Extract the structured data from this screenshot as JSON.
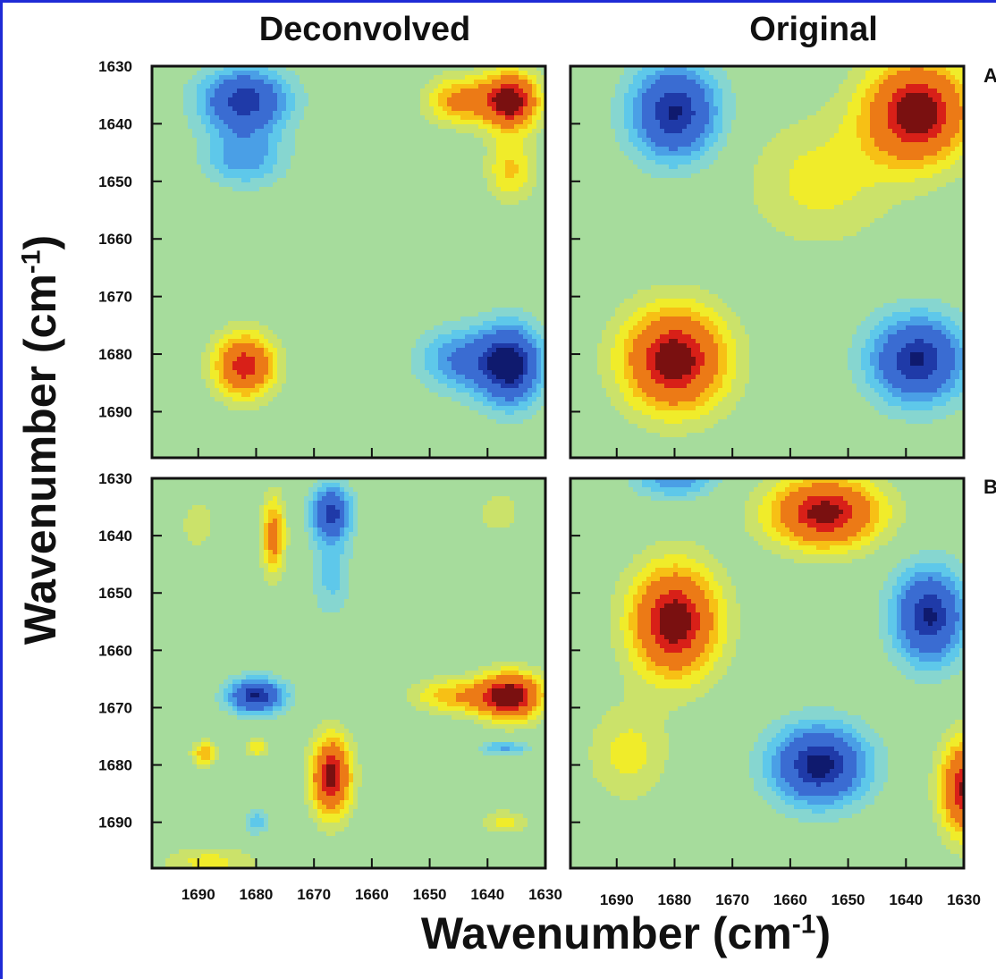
{
  "chart_data": {
    "type": "heatmap",
    "x_axis_label": "Wavenumber (cm",
    "y_axis_label": "Wavenumber (cm",
    "axis_label_superscript": "-1",
    "columns": [
      "Deconvolved",
      "Original"
    ],
    "rows": [
      "A",
      "B"
    ],
    "xlim": [
      1698,
      1630
    ],
    "ylim": [
      1630,
      1698
    ],
    "x_ticks": [
      1690,
      1680,
      1670,
      1660,
      1650,
      1640,
      1630
    ],
    "y_ticks": [
      1630,
      1640,
      1650,
      1660,
      1670,
      1680,
      1690
    ],
    "contour_levels": 16,
    "colormap": [
      "#0f1a6e",
      "#1f3aa8",
      "#3a6cd2",
      "#4a9fe6",
      "#5ec8ea",
      "#86d6d0",
      "#a6dc9c",
      "#cbe26a",
      "#f0ec2a",
      "#f7c015",
      "#ec7a16",
      "#d82018",
      "#7a1010"
    ],
    "panels": [
      {
        "row": "A",
        "column": "Deconvolved",
        "peaks": [
          {
            "x": 1682,
            "y": 1636,
            "value": -0.85,
            "sx": 5.5,
            "sy": 4.0
          },
          {
            "x": 1682,
            "y": 1646,
            "value": -0.45,
            "sx": 5.0,
            "sy": 3.5
          },
          {
            "x": 1636,
            "y": 1636,
            "value": 1.0,
            "sx": 3.5,
            "sy": 3.5
          },
          {
            "x": 1645,
            "y": 1636,
            "value": 0.55,
            "sx": 4.0,
            "sy": 3.0
          },
          {
            "x": 1636,
            "y": 1648,
            "value": 0.4,
            "sx": 3.0,
            "sy": 4.0
          },
          {
            "x": 1682,
            "y": 1682,
            "value": 0.85,
            "sx": 3.8,
            "sy": 4.0
          },
          {
            "x": 1636,
            "y": 1682,
            "value": -0.95,
            "sx": 4.0,
            "sy": 5.0
          },
          {
            "x": 1645,
            "y": 1681,
            "value": -0.5,
            "sx": 5.0,
            "sy": 4.0
          }
        ]
      },
      {
        "row": "A",
        "column": "Original",
        "peaks": [
          {
            "x": 1680,
            "y": 1638,
            "value": -0.9,
            "sx": 5.5,
            "sy": 6.0
          },
          {
            "x": 1638,
            "y": 1638,
            "value": 1.0,
            "sx": 6.5,
            "sy": 6.5
          },
          {
            "x": 1680,
            "y": 1681,
            "value": 1.0,
            "sx": 6.5,
            "sy": 6.5
          },
          {
            "x": 1638,
            "y": 1681,
            "value": -0.9,
            "sx": 6.0,
            "sy": 5.5
          },
          {
            "x": 1655,
            "y": 1650,
            "value": 0.3,
            "sx": 9.0,
            "sy": 8.0
          }
        ]
      },
      {
        "row": "B",
        "column": "Deconvolved",
        "peaks": [
          {
            "x": 1667,
            "y": 1636,
            "value": -0.8,
            "sx": 2.5,
            "sy": 3.5
          },
          {
            "x": 1667,
            "y": 1647,
            "value": -0.3,
            "sx": 2.5,
            "sy": 5.0
          },
          {
            "x": 1677,
            "y": 1640,
            "value": 0.6,
            "sx": 1.5,
            "sy": 5.0
          },
          {
            "x": 1680,
            "y": 1668,
            "value": -0.9,
            "sx": 3.5,
            "sy": 2.2
          },
          {
            "x": 1636,
            "y": 1668,
            "value": 1.0,
            "sx": 4.0,
            "sy": 3.0
          },
          {
            "x": 1646,
            "y": 1668,
            "value": 0.45,
            "sx": 5.0,
            "sy": 2.2
          },
          {
            "x": 1667,
            "y": 1682,
            "value": 0.95,
            "sx": 2.5,
            "sy": 5.0
          },
          {
            "x": 1689,
            "y": 1678,
            "value": 0.5,
            "sx": 1.5,
            "sy": 1.5
          },
          {
            "x": 1680,
            "y": 1677,
            "value": 0.35,
            "sx": 1.5,
            "sy": 1.2
          },
          {
            "x": 1637,
            "y": 1677,
            "value": -0.4,
            "sx": 3.0,
            "sy": 1.0
          },
          {
            "x": 1680,
            "y": 1690,
            "value": -0.35,
            "sx": 1.5,
            "sy": 1.5
          },
          {
            "x": 1638,
            "y": 1636,
            "value": 0.25,
            "sx": 2.5,
            "sy": 2.5
          },
          {
            "x": 1637,
            "y": 1690,
            "value": 0.3,
            "sx": 3.0,
            "sy": 1.5
          },
          {
            "x": 1690,
            "y": 1638,
            "value": 0.25,
            "sx": 2.0,
            "sy": 3.0
          },
          {
            "x": 1688,
            "y": 1697,
            "value": 0.3,
            "sx": 6.0,
            "sy": 2.0
          }
        ]
      },
      {
        "row": "B",
        "column": "Original",
        "peaks": [
          {
            "x": 1680,
            "y": 1655,
            "value": 1.0,
            "sx": 5.5,
            "sy": 7.0
          },
          {
            "x": 1654,
            "y": 1636,
            "value": 0.95,
            "sx": 7.0,
            "sy": 4.5
          },
          {
            "x": 1636,
            "y": 1654,
            "value": -0.9,
            "sx": 4.5,
            "sy": 6.0
          },
          {
            "x": 1655,
            "y": 1680,
            "value": -0.95,
            "sx": 6.0,
            "sy": 5.0
          },
          {
            "x": 1630,
            "y": 1684,
            "value": 0.9,
            "sx": 3.0,
            "sy": 6.0
          },
          {
            "x": 1680,
            "y": 1630,
            "value": -0.5,
            "sx": 5.0,
            "sy": 2.5
          },
          {
            "x": 1688,
            "y": 1678,
            "value": 0.3,
            "sx": 5.0,
            "sy": 6.0
          }
        ]
      }
    ]
  }
}
